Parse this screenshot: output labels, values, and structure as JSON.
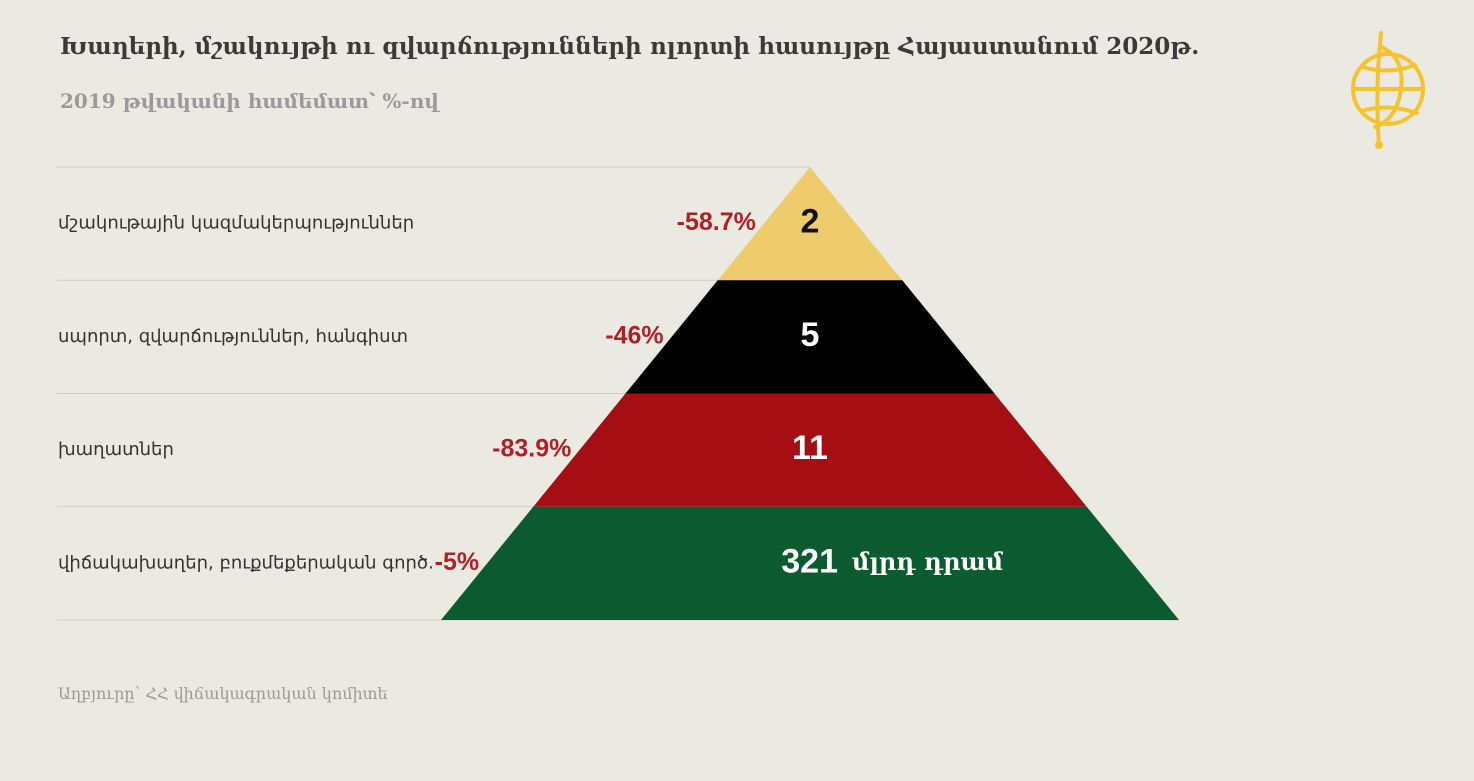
{
  "title": "Խաղերի, մշակույթի ու զվարճությունների ոլորտի հասույթը Հայաստանում  2020թ.",
  "subtitle": "2019 թվականի համեմատ՝ %-ով",
  "source": "Աղբյուրը՝ ՀՀ վիճակագրական կոմիտե",
  "colors": {
    "background": "#EBEAE2",
    "change": "#B21F24",
    "gridline": "#CFCEC6"
  },
  "logo_icon": "yellow-globe-emblem",
  "chart_data": {
    "type": "pyramid",
    "title": "Խաղերի, մշակույթի ու զվարճությունների ոլորտի հասույթը Հայաստանում  2020թ.",
    "subtitle": "2019 թվականի համեմատ՝ %-ով",
    "categories": [
      "մշակութային կազմակերպություններ",
      "սպորտ, զվարճություններ, հանգիստ",
      "խաղատներ",
      "վիճակախաղեր, բուքմեքերական գործ."
    ],
    "values": [
      2,
      5,
      11,
      321
    ],
    "value_labels": [
      "2",
      "5",
      "11",
      "321"
    ],
    "unit": "մլրդ դրամ",
    "change_pct": [
      -58.7,
      -46,
      -83.9,
      -5
    ],
    "change_labels": [
      "-58.7%",
      "-46%",
      "-83.9%",
      "-5%"
    ],
    "segment_colors": [
      "#EFCC6B",
      "#000000",
      "#A50F14",
      "#0C5A30"
    ],
    "value_text_colors": [
      "#111111",
      "#FFFFFF",
      "#FFFFFF",
      "#FFFFFF"
    ]
  }
}
